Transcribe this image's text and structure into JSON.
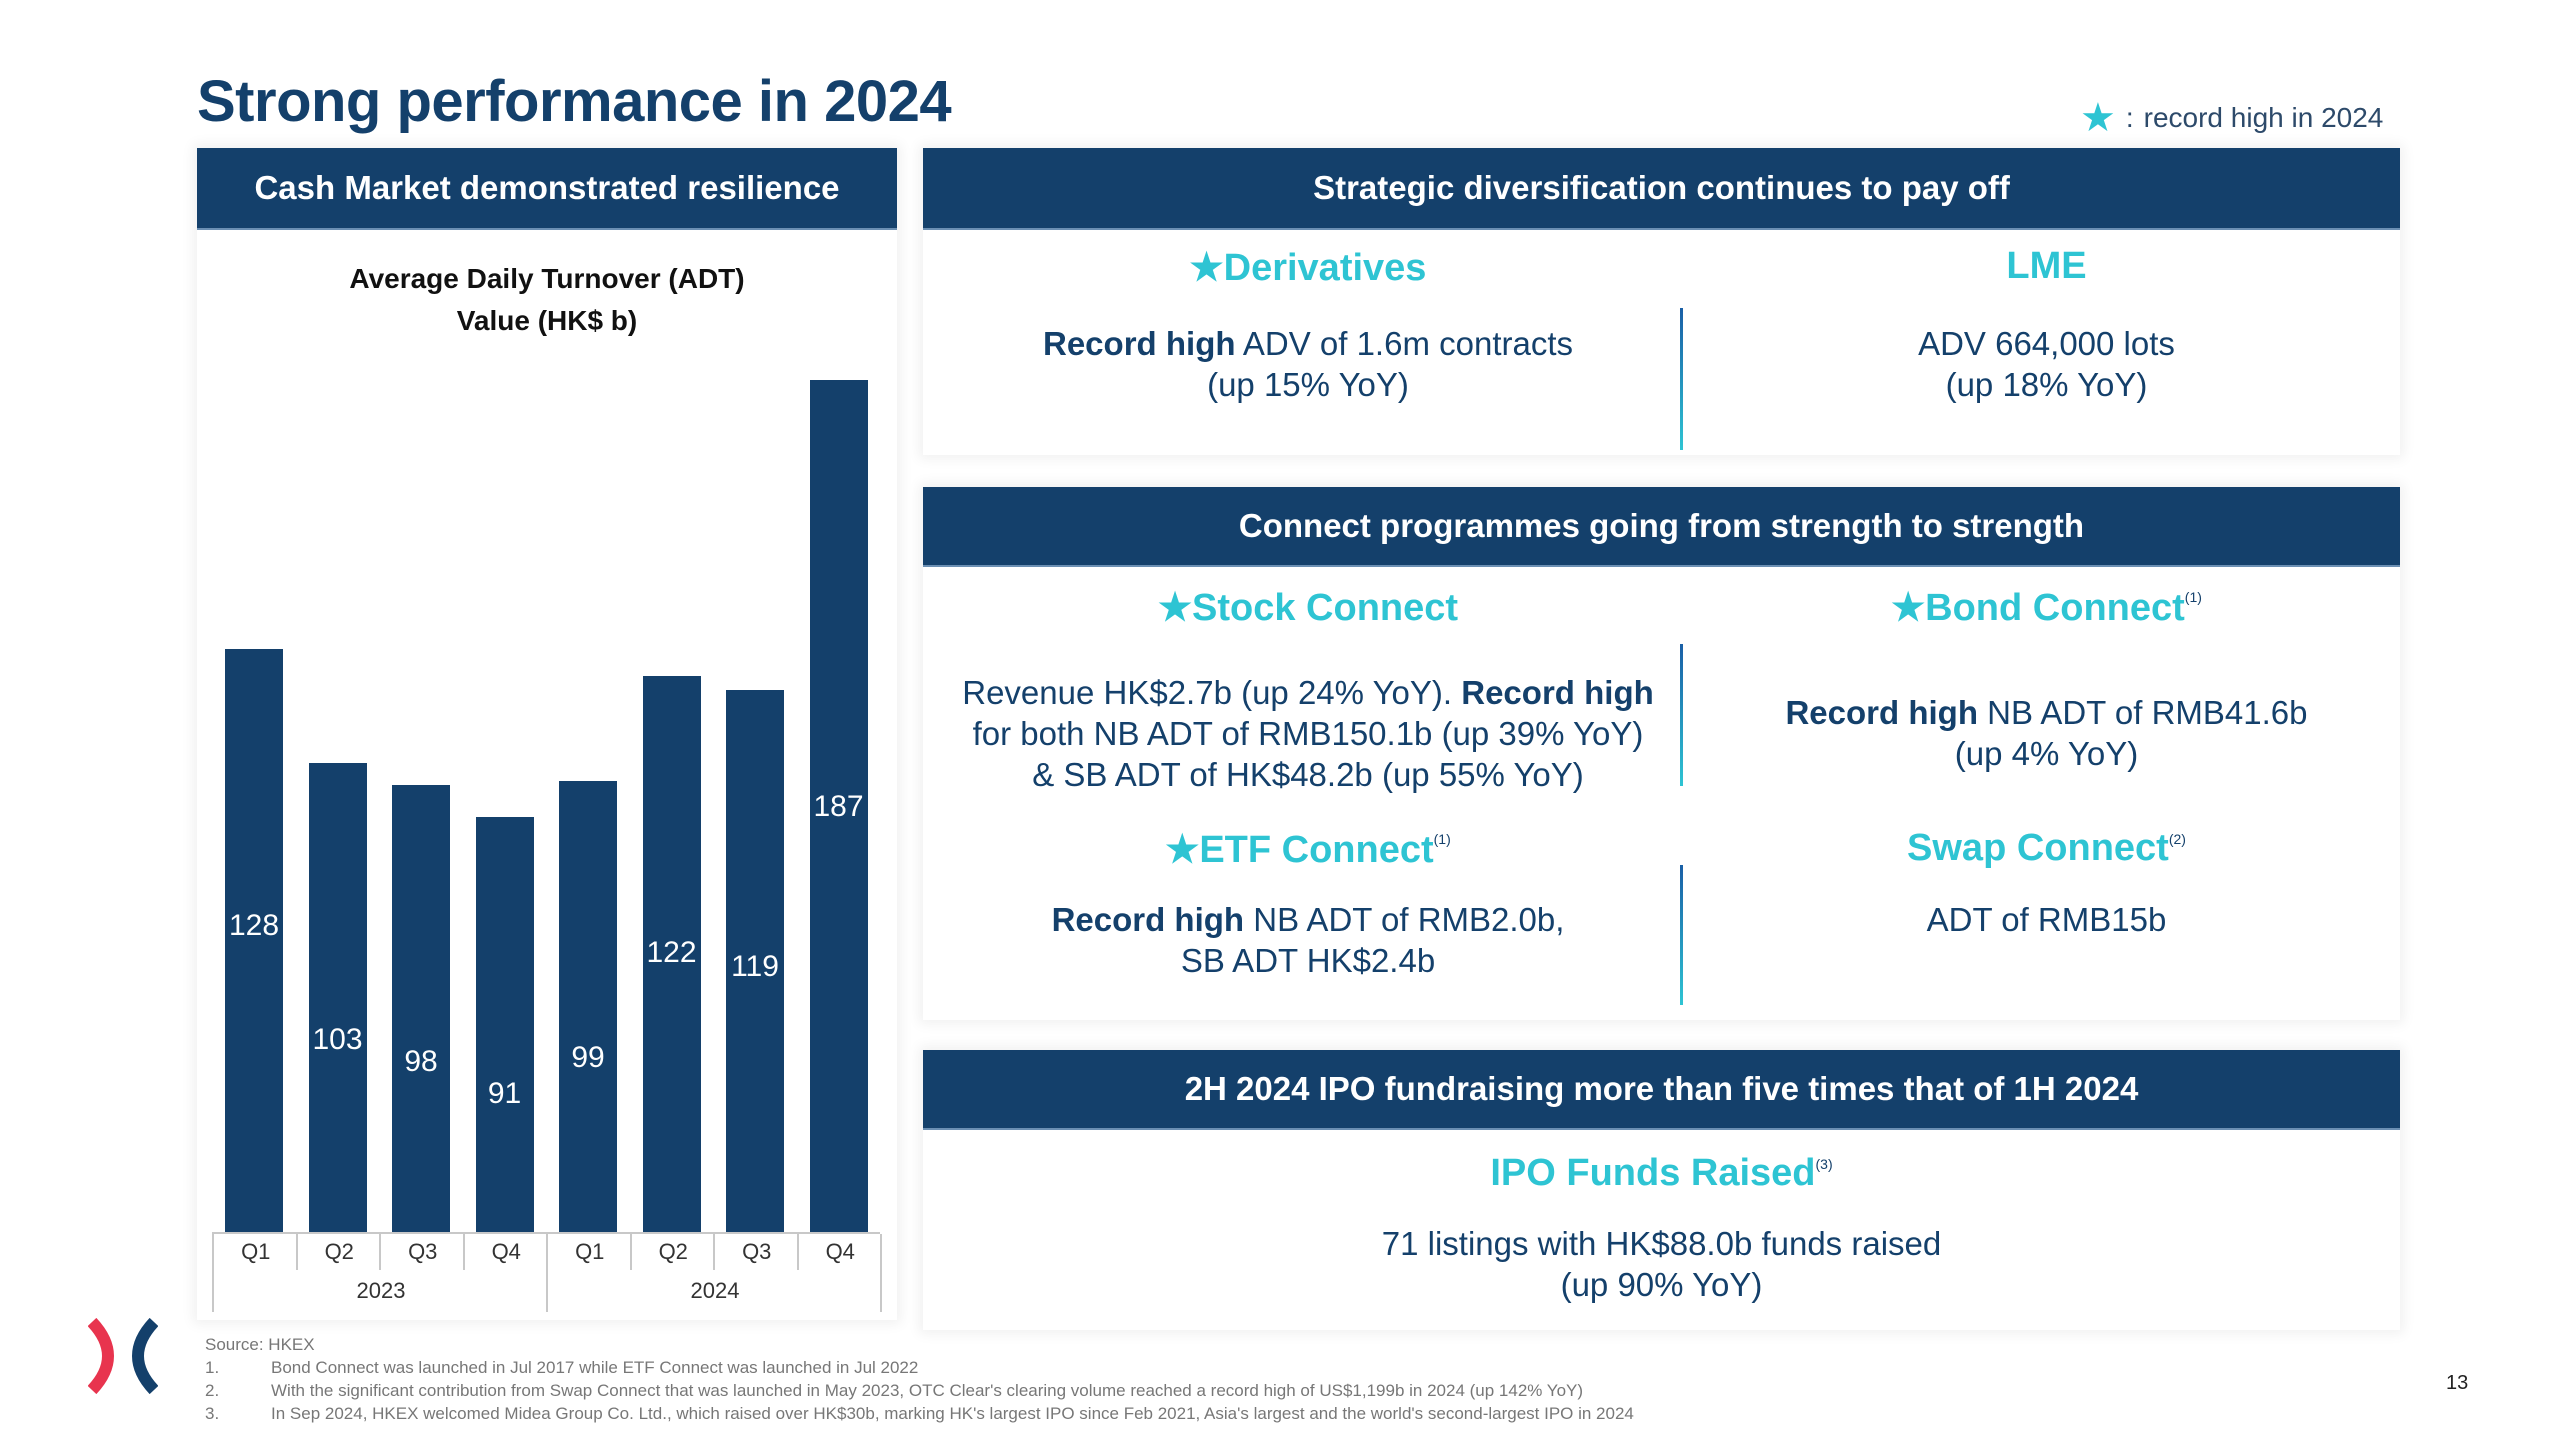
{
  "title": "Strong performance in 2024",
  "legend": {
    "icon": "star-icon",
    "separator": ":",
    "text": "record high in 2024"
  },
  "colors": {
    "navy": "#14406b",
    "teal": "#2ec4d3",
    "logo_red": "#e8344e"
  },
  "left_panel": {
    "header": "Cash Market demonstrated resilience"
  },
  "chart_data": {
    "type": "bar",
    "title": "Average Daily Turnover (ADT)",
    "subtitle": "Value (HK$ b)",
    "categories": [
      "Q1",
      "Q2",
      "Q3",
      "Q4",
      "Q1",
      "Q2",
      "Q3",
      "Q4"
    ],
    "groups": [
      {
        "label": "2023",
        "span": 4
      },
      {
        "label": "2024",
        "span": 4
      }
    ],
    "values": [
      128,
      103,
      98,
      91,
      99,
      122,
      119,
      187
    ],
    "value_labels": [
      "128",
      "103",
      "98",
      "91",
      "99",
      "122",
      "119",
      "187"
    ],
    "xlabel": "",
    "ylabel": "",
    "ylim": [
      0,
      187
    ],
    "grid": false,
    "legend": "none"
  },
  "diversification": {
    "header": "Strategic diversification continues to pay off",
    "derivatives": {
      "title": "Derivatives",
      "starred": true,
      "bold": "Record high",
      "line1": " ADV of 1.6m contracts",
      "line2": "(up 15% YoY)"
    },
    "lme": {
      "title": "LME",
      "starred": false,
      "line1": "ADV 664,000 lots",
      "line2": "(up 18% YoY)"
    }
  },
  "connect": {
    "header": "Connect programmes going from strength to strength",
    "stock": {
      "title": "Stock Connect",
      "starred": true,
      "line1": "Revenue HK$2.7b (up 24% YoY). ",
      "line1_bold": "Record high",
      "line2": "for both NB ADT of RMB150.1b (up 39% YoY)",
      "line3": "& SB ADT of HK$48.2b (up 55% YoY)"
    },
    "bond": {
      "title": "Bond Connect",
      "sup": "(1)",
      "starred": true,
      "bold": "Record high",
      "line1": " NB ADT of RMB41.6b",
      "line2": "(up 4% YoY)"
    },
    "etf": {
      "title": "ETF Connect",
      "sup": "(1)",
      "starred": true,
      "bold": "Record high",
      "line1": " NB ADT of RMB2.0b,",
      "line2": "SB ADT HK$2.4b"
    },
    "swap": {
      "title": "Swap Connect",
      "sup": "(2)",
      "starred": false,
      "line1": "ADT of RMB15b"
    }
  },
  "ipo": {
    "header": "2H 2024 IPO fundraising more than five times that of 1H 2024",
    "title": "IPO Funds Raised",
    "sup": "(3)",
    "line1": "71 listings with HK$88.0b funds raised",
    "line2": "(up 90% YoY)"
  },
  "footnotes": {
    "source": "Source: HKEX",
    "items": [
      {
        "num": "1.",
        "text": "Bond Connect was launched in Jul 2017 while ETF Connect was launched in Jul 2022"
      },
      {
        "num": "2.",
        "text": "With the significant contribution from Swap Connect that was launched in May 2023, OTC Clear's clearing volume reached a record high of US$1,199b in 2024 (up 142% YoY)"
      },
      {
        "num": "3.",
        "text": "In Sep 2024, HKEX welcomed Midea Group Co. Ltd., which raised over HK$30b, marking HK's largest IPO since Feb 2021, Asia's largest and the world's second-largest IPO in 2024"
      }
    ]
  },
  "page_number": "13",
  "star_glyph": "★"
}
